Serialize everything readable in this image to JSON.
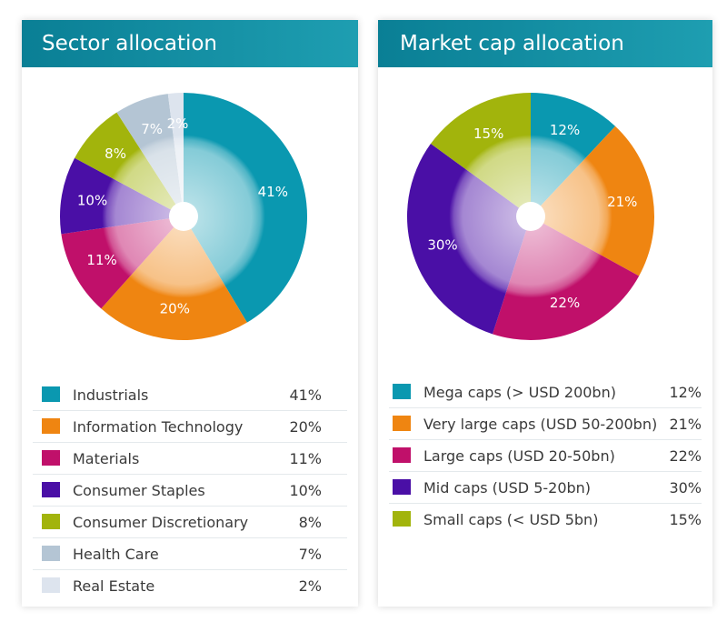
{
  "sector": {
    "title": "Sector allocation",
    "chart_data": {
      "type": "pie",
      "title": "Sector allocation",
      "categories": [
        "Industrials",
        "Information Technology",
        "Materials",
        "Consumer Staples",
        "Consumer Discretionary",
        "Health Care",
        "Real Estate"
      ],
      "values": [
        41,
        20,
        11,
        10,
        8,
        7,
        2
      ],
      "labels": [
        "41%",
        "20%",
        "11%",
        "10%",
        "8%",
        "7%",
        "2%"
      ],
      "colors": [
        "#0a98b0",
        "#ef8511",
        "#c0106a",
        "#4a0fa6",
        "#a2b40c",
        "#b4c5d4",
        "#dde4ee"
      ]
    }
  },
  "marketcap": {
    "title": "Market cap allocation",
    "chart_data": {
      "type": "pie",
      "title": "Market cap allocation",
      "categories": [
        "Mega caps (> USD 200bn)",
        "Very large caps (USD 50-200bn)",
        "Large caps (USD 20-50bn)",
        "Mid caps (USD 5-20bn)",
        "Small caps (< USD 5bn)"
      ],
      "values": [
        12,
        21,
        22,
        30,
        15
      ],
      "labels": [
        "12%",
        "21%",
        "22%",
        "30%",
        "15%"
      ],
      "colors": [
        "#0a98b0",
        "#ef8511",
        "#c0106a",
        "#4a0fa6",
        "#a2b40c"
      ]
    }
  }
}
